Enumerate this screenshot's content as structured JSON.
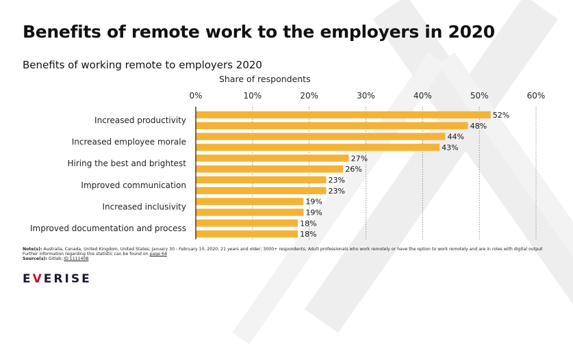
{
  "title": "Benefits of remote work to the employers in 2020",
  "notes": {
    "note_label": "Note(s):",
    "note_text": "Australia, Canada, United Kingdom, United States; January 30 - February 10, 2020; 21 years and older; 3000+ respondents; Adult professionals who work remotely or have the option to work remotely and are in roles with digital output",
    "further_text": "Further information regarding this statistic can be found on",
    "page_link": "page 64",
    "source_label": "Source(s):",
    "source_text": "Gitlab;",
    "source_id": "ID 1111408"
  },
  "logo": {
    "part1": "E",
    "part2": "V",
    "part3": "ERISE"
  },
  "colors": {
    "bar": "#f5b335",
    "grid": "#777777",
    "axis": "#111111"
  },
  "chart_data": {
    "type": "bar",
    "orientation": "horizontal",
    "title": "Benefits of working remote to employers 2020",
    "xlabel": "Share of respondents",
    "ylabel": "",
    "xlim": [
      0,
      60
    ],
    "x_ticks": [
      "0%",
      "10%",
      "20%",
      "30%",
      "40%",
      "50%",
      "60%"
    ],
    "x_tick_values": [
      0,
      10,
      20,
      30,
      40,
      50,
      60
    ],
    "grid": true,
    "labels": [
      "Increased productivity",
      "",
      "Increased employee morale",
      "",
      "Hiring the best and brightest",
      "",
      "Improved communication",
      "",
      "Increased inclusivity",
      "",
      "Improved documentation and process",
      ""
    ],
    "values": [
      52,
      48,
      44,
      43,
      27,
      26,
      23,
      23,
      19,
      19,
      18,
      18
    ],
    "value_labels": [
      "52%",
      "48%",
      "44%",
      "43%",
      "27%",
      "26%",
      "23%",
      "23%",
      "19%",
      "19%",
      "18%",
      "18%"
    ]
  }
}
